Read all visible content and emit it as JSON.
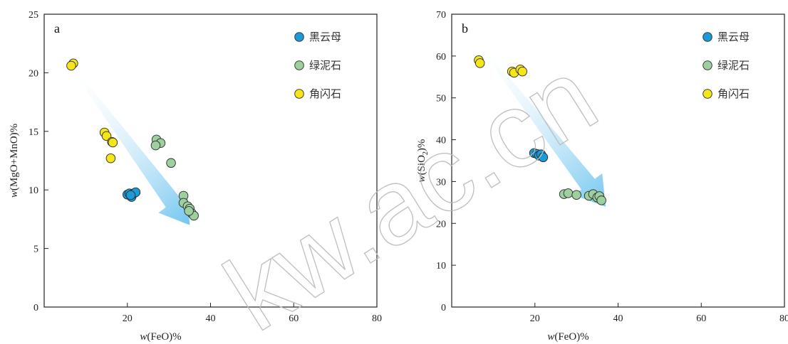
{
  "colors": {
    "biotite": "#1b9ad6",
    "chlorite": "#9ecf9e",
    "amphibole": "#f5e51a",
    "arrow": "#8fd0f2",
    "watermark": "#bdbdbd"
  },
  "watermark": "kw.ac.cn",
  "chart_data": [
    {
      "type": "scatter",
      "panel_label": "a",
      "xlabel_var": "w",
      "xlabel_rest": "(FeO)%",
      "ylabel_var": "w",
      "ylabel_rest": "(MgO+MnO)%",
      "xlim": [
        0,
        80
      ],
      "ylim": [
        0,
        25
      ],
      "xticks": [
        20,
        40,
        60,
        80
      ],
      "yticks": [
        0,
        5,
        10,
        15,
        20,
        25
      ],
      "legend_position": "top-right",
      "arrow": {
        "from": [
          6.5,
          20.6
        ],
        "to": [
          35,
          7
        ]
      },
      "series": [
        {
          "name": "黑云母",
          "color_key": "biotite",
          "points": [
            [
              20,
              9.6
            ],
            [
              20.5,
              9.7
            ],
            [
              21,
              9.4
            ],
            [
              21.5,
              9.7
            ],
            [
              22,
              9.8
            ],
            [
              20.8,
              9.55
            ]
          ]
        },
        {
          "name": "绿泥石",
          "color_key": "chlorite",
          "points": [
            [
              27,
              14.3
            ],
            [
              28,
              14.0
            ],
            [
              26.8,
              13.8
            ],
            [
              30.5,
              12.3
            ],
            [
              33.5,
              9.5
            ],
            [
              33.5,
              8.9
            ],
            [
              34.5,
              8.6
            ],
            [
              35,
              8.4
            ],
            [
              35.5,
              8.0
            ],
            [
              36,
              7.8
            ],
            [
              34.8,
              8.2
            ]
          ]
        },
        {
          "name": "角闪石",
          "color_key": "amphibole",
          "points": [
            [
              7,
              20.8
            ],
            [
              6.5,
              20.6
            ],
            [
              14.5,
              14.9
            ],
            [
              15,
              14.6
            ],
            [
              16.3,
              14.1
            ],
            [
              16.5,
              14.05
            ],
            [
              16,
              12.7
            ]
          ]
        }
      ]
    },
    {
      "type": "scatter",
      "panel_label": "b",
      "xlabel_var": "w",
      "xlabel_rest": "(FeO)%",
      "ylabel_var": "w",
      "ylabel_rest": "(SiO",
      "ylabel_sub": "2",
      "ylabel_end": ")%",
      "xlim": [
        0,
        80
      ],
      "ylim": [
        0,
        70
      ],
      "xticks": [
        20,
        40,
        60,
        80
      ],
      "yticks": [
        0,
        10,
        20,
        30,
        40,
        50,
        60,
        70
      ],
      "legend_position": "top-right",
      "arrow": {
        "from": [
          6.5,
          63
        ],
        "to": [
          37,
          24
        ]
      },
      "series": [
        {
          "name": "黑云母",
          "color_key": "biotite",
          "points": [
            [
              19.8,
              36.8
            ],
            [
              20.5,
              36.6
            ],
            [
              21,
              36.2
            ],
            [
              21.5,
              36.5
            ],
            [
              22,
              35.8
            ]
          ]
        },
        {
          "name": "绿泥石",
          "color_key": "chlorite",
          "points": [
            [
              27,
              27.0
            ],
            [
              28,
              27.2
            ],
            [
              30,
              26.8
            ],
            [
              33,
              26.6
            ],
            [
              34,
              27.0
            ],
            [
              35,
              26.2
            ],
            [
              35.5,
              26.5
            ],
            [
              36,
              25.5
            ]
          ]
        },
        {
          "name": "角闪石",
          "color_key": "amphibole",
          "points": [
            [
              6.5,
              59.0
            ],
            [
              6.8,
              58.3
            ],
            [
              14.5,
              56.3
            ],
            [
              15,
              56.0
            ],
            [
              16.5,
              56.8
            ],
            [
              17,
              56.3
            ]
          ]
        }
      ]
    }
  ]
}
